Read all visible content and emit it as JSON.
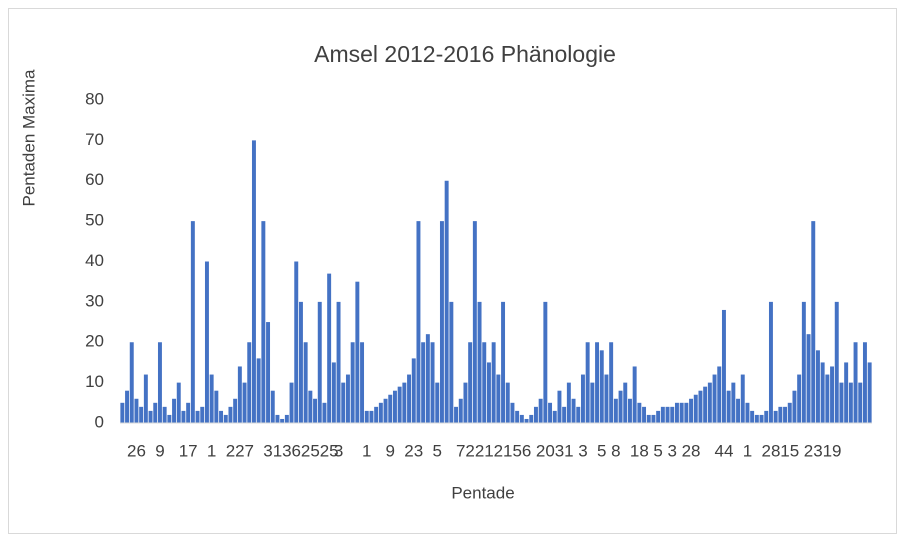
{
  "chart_data": {
    "type": "bar",
    "title": "Amsel 2012-2016 Phänologie",
    "x_label": "Pentade",
    "y_label": "Pentaden Maxima",
    "color": "#4472c4",
    "grid": false,
    "ylim": [
      0,
      80
    ],
    "yticks": [
      0,
      10,
      20,
      30,
      40,
      50,
      60,
      70,
      80
    ],
    "categories": [
      null,
      null,
      null,
      "26",
      null,
      null,
      null,
      null,
      "9",
      null,
      null,
      null,
      null,
      null,
      "17",
      null,
      null,
      null,
      null,
      "1",
      null,
      null,
      null,
      null,
      "22",
      null,
      null,
      "7",
      null,
      null,
      null,
      null,
      "31",
      null,
      null,
      null,
      "36",
      null,
      null,
      null,
      "25",
      null,
      null,
      null,
      "25",
      null,
      "3",
      null,
      null,
      null,
      null,
      null,
      "1",
      null,
      null,
      null,
      null,
      "9",
      null,
      null,
      null,
      null,
      "23",
      null,
      null,
      null,
      null,
      "5",
      null,
      null,
      null,
      null,
      "7",
      null,
      null,
      "22",
      null,
      null,
      null,
      "12",
      null,
      null,
      null,
      "15",
      null,
      null,
      "6",
      null,
      null,
      null,
      "20",
      null,
      null,
      null,
      "31",
      null,
      null,
      null,
      "3",
      null,
      null,
      null,
      "5",
      null,
      null,
      "8",
      null,
      null,
      null,
      null,
      "18",
      null,
      null,
      null,
      "5",
      null,
      null,
      "3",
      null,
      null,
      null,
      "28",
      null,
      null,
      null,
      null,
      null,
      null,
      "44",
      null,
      null,
      null,
      null,
      "1",
      null,
      null,
      null,
      null,
      "28",
      null,
      null,
      null,
      "15",
      null,
      null,
      null,
      null,
      "23",
      null,
      null,
      null,
      "19",
      null,
      null,
      null,
      null,
      null,
      null,
      null,
      null
    ],
    "values": [
      5,
      8,
      20,
      6,
      4,
      12,
      3,
      5,
      20,
      4,
      2,
      6,
      10,
      3,
      5,
      50,
      3,
      4,
      40,
      12,
      8,
      3,
      2,
      4,
      6,
      14,
      10,
      20,
      70,
      16,
      50,
      25,
      8,
      2,
      1,
      2,
      10,
      40,
      30,
      20,
      8,
      6,
      30,
      5,
      37,
      15,
      30,
      10,
      12,
      20,
      35,
      20,
      3,
      3,
      4,
      5,
      6,
      7,
      8,
      9,
      10,
      12,
      16,
      50,
      20,
      22,
      20,
      10,
      50,
      60,
      30,
      4,
      6,
      10,
      20,
      50,
      30,
      20,
      15,
      20,
      12,
      30,
      10,
      5,
      3,
      2,
      1,
      2,
      4,
      6,
      30,
      5,
      3,
      8,
      4,
      10,
      6,
      4,
      12,
      20,
      10,
      20,
      18,
      12,
      20,
      6,
      8,
      10,
      6,
      14,
      5,
      4,
      2,
      2,
      3,
      4,
      4,
      4,
      5,
      5,
      5,
      6,
      7,
      8,
      9,
      10,
      12,
      14,
      28,
      8,
      10,
      6,
      12,
      5,
      3,
      2,
      2,
      3,
      30,
      3,
      4,
      4,
      5,
      8,
      12,
      30,
      22,
      50,
      18,
      15,
      12,
      14,
      30,
      10,
      15,
      10,
      20,
      10,
      20,
      15
    ]
  }
}
